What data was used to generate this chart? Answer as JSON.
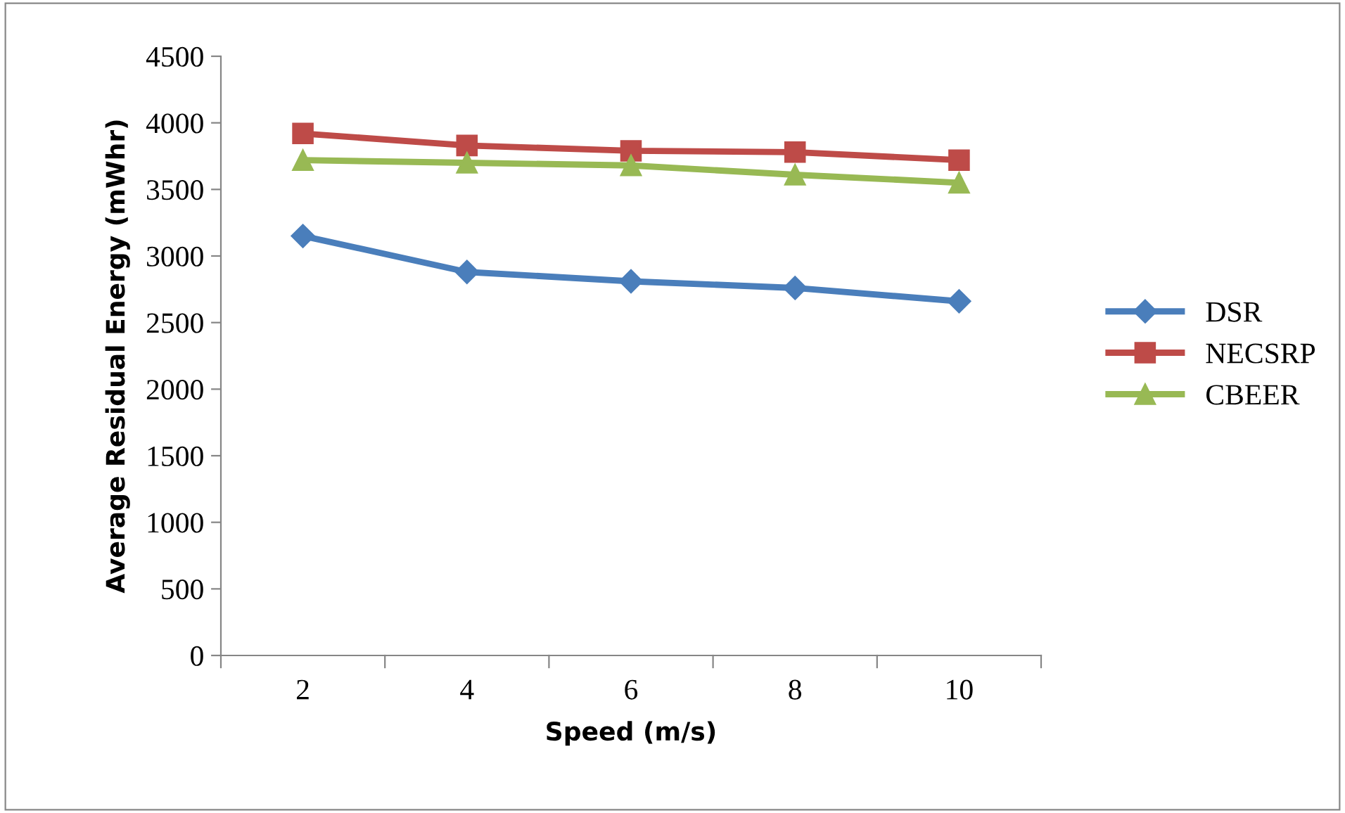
{
  "chart_data": {
    "type": "line",
    "xlabel": "Speed (m/s)",
    "ylabel": "Average Residual Energy (mWhr)",
    "categories": [
      "2",
      "4",
      "6",
      "8",
      "10"
    ],
    "series": [
      {
        "name": "DSR",
        "color": "#4a7ebb",
        "values": [
          3150,
          2880,
          2810,
          2760,
          2660
        ],
        "marker": "diamond"
      },
      {
        "name": "NECSRP",
        "color": "#be4b48",
        "values": [
          3920,
          3830,
          3790,
          3780,
          3720
        ],
        "marker": "square"
      },
      {
        "name": "CBEER",
        "color": "#98b954",
        "values": [
          3720,
          3700,
          3680,
          3610,
          3550
        ],
        "marker": "triangle"
      }
    ],
    "ylim": [
      0,
      4500
    ],
    "yticks": [
      0,
      500,
      1000,
      1500,
      2000,
      2500,
      3000,
      3500,
      4000,
      4500
    ],
    "grid": false,
    "legend": "right",
    "line_style": "solid"
  }
}
